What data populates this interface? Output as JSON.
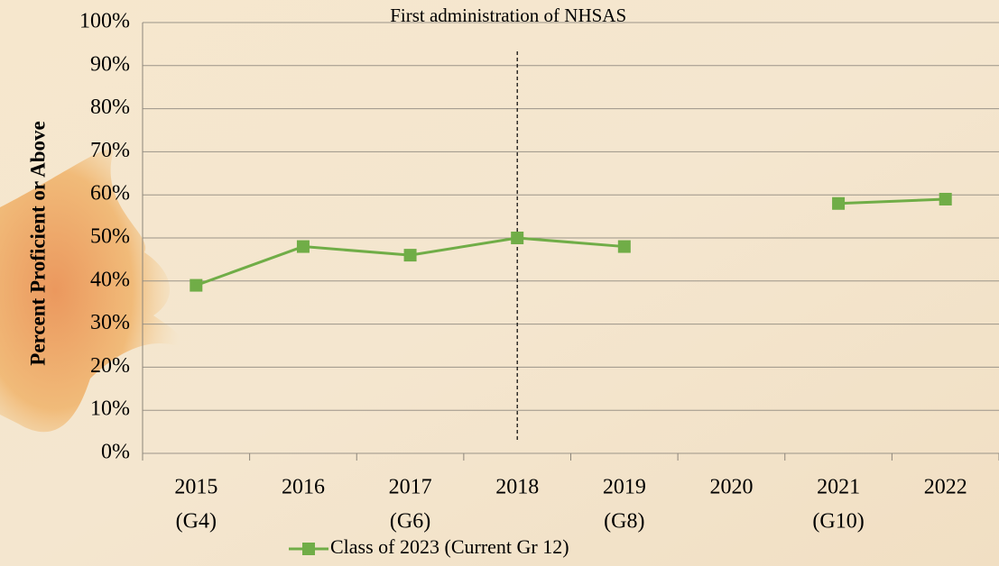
{
  "chart_data": {
    "type": "line",
    "y_axis_label": "Percent Proficient or Above",
    "categories": [
      [
        "2015",
        "(G4)"
      ],
      [
        "2016"
      ],
      [
        "2017",
        "(G6)"
      ],
      [
        "2018"
      ],
      [
        "2019",
        "(G8)"
      ],
      [
        "2020"
      ],
      [
        "2021",
        "(G10)"
      ],
      [
        "2022"
      ]
    ],
    "series": [
      {
        "name": "Class of 2023 (Current Gr 12)",
        "color": "#70ad47",
        "values": [
          39,
          48,
          46,
          50,
          48,
          null,
          58,
          59
        ]
      }
    ],
    "ylim": [
      0,
      100
    ],
    "yticks": [
      {
        "value": 0,
        "label": "0%"
      },
      {
        "value": 10,
        "label": "10%"
      },
      {
        "value": 20,
        "label": "20%"
      },
      {
        "value": 30,
        "label": "30%"
      },
      {
        "value": 40,
        "label": "40%"
      },
      {
        "value": 50,
        "label": "50%"
      },
      {
        "value": 60,
        "label": "60%"
      },
      {
        "value": 70,
        "label": "70%"
      },
      {
        "value": 80,
        "label": "80%"
      },
      {
        "value": 90,
        "label": "90%"
      },
      {
        "value": 100,
        "label": "100%"
      }
    ],
    "grid": true,
    "legend": "bottom",
    "annotation": {
      "text": "First administration of NHSAS",
      "x": "2018"
    }
  }
}
